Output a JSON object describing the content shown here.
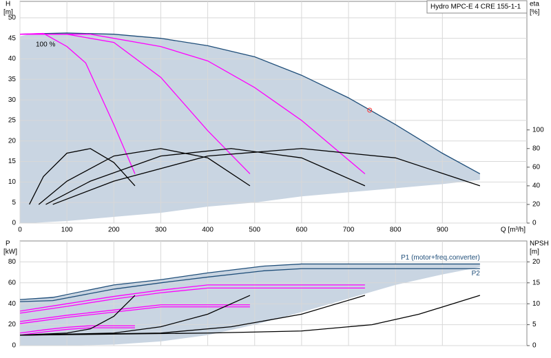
{
  "chart_data": [
    {
      "type": "line",
      "title": "Hydro MPC-E 4 CRE 155-1-1",
      "annotation": "100 %",
      "y_label": "H",
      "y_unit": "[m]",
      "y2_label": "eta",
      "y2_unit": "[%]",
      "x_label": "Q [m³/h]",
      "xlim": [
        0,
        1080
      ],
      "xticks": [
        0,
        100,
        200,
        300,
        400,
        500,
        600,
        700,
        800,
        900
      ],
      "ylim": [
        0,
        54
      ],
      "yticks": [
        0,
        5,
        10,
        15,
        20,
        25,
        30,
        35,
        40,
        45,
        50
      ],
      "y2lim": [
        0,
        238
      ],
      "y2ticks": [
        0,
        20,
        40,
        60,
        80,
        100
      ],
      "grid": true,
      "area": {
        "color": "#c9d5e2",
        "x": [
          0,
          20,
          100,
          200,
          300,
          400,
          500,
          600,
          700,
          800,
          900,
          980
        ],
        "upper": [
          45.5,
          46,
          46.3,
          46,
          45,
          43.2,
          40.5,
          36,
          30.5,
          24,
          17,
          12
        ],
        "lower": [
          0,
          0,
          0.5,
          1.5,
          2.5,
          4,
          5,
          6.5,
          7.5,
          8.5,
          9.5,
          10.5
        ]
      },
      "series": [
        {
          "color": "#1f4e79",
          "x": [
            0,
            100,
            200,
            300,
            400,
            500,
            600,
            700,
            800,
            900,
            980
          ],
          "values": [
            46,
            46.3,
            46,
            45,
            43.2,
            40.5,
            36,
            30.5,
            24,
            17,
            12
          ]
        },
        {
          "color": "#ff00ff",
          "x": [
            0,
            50,
            100,
            140,
            200,
            245
          ],
          "values": [
            46,
            46.2,
            43,
            39,
            24,
            12
          ]
        },
        {
          "color": "#ff00ff",
          "x": [
            0,
            100,
            200,
            300,
            400,
            490
          ],
          "values": [
            46,
            46,
            44,
            35.5,
            22.5,
            12
          ]
        },
        {
          "color": "#ff00ff",
          "x": [
            0,
            150,
            300,
            400,
            500,
            600,
            735
          ],
          "values": [
            46,
            46,
            43,
            39.5,
            33,
            25,
            12
          ]
        },
        {
          "color": "#000000",
          "axis": "y2",
          "x": [
            20,
            50,
            100,
            150,
            200,
            245
          ],
          "values": [
            20,
            50,
            75,
            80,
            65,
            40
          ]
        },
        {
          "color": "#000000",
          "axis": "y2",
          "x": [
            40,
            100,
            200,
            300,
            400,
            490
          ],
          "values": [
            20,
            45,
            72,
            80,
            70,
            40
          ]
        },
        {
          "color": "#000000",
          "axis": "y2",
          "x": [
            55,
            150,
            300,
            450,
            600,
            735
          ],
          "values": [
            20,
            45,
            72,
            80,
            70,
            40
          ]
        },
        {
          "color": "#000000",
          "axis": "y2",
          "x": [
            70,
            200,
            400,
            600,
            800,
            980
          ],
          "values": [
            20,
            45,
            72,
            80,
            70,
            40
          ]
        }
      ],
      "marker": {
        "color": "#ff3030",
        "x": 745,
        "value": 27.5
      }
    },
    {
      "type": "line",
      "y_label": "P",
      "y_unit": "[kW]",
      "y2_label": "NPSH",
      "y2_unit": "[m]",
      "xlim": [
        0,
        1080
      ],
      "ylim": [
        0,
        100
      ],
      "yticks": [
        0,
        20,
        40,
        60,
        80
      ],
      "y2lim": [
        0,
        25
      ],
      "y2ticks": [
        0,
        5,
        10,
        15,
        20
      ],
      "grid": true,
      "area": {
        "color": "#c9d5e2",
        "x": [
          0,
          100,
          200,
          300,
          400,
          500,
          600,
          700,
          800,
          900,
          980
        ],
        "upper": [
          44,
          48,
          58,
          63,
          69.5,
          75,
          78,
          78,
          78,
          78,
          78
        ],
        "lower": [
          0,
          0,
          1,
          4,
          10,
          20,
          32,
          45,
          58,
          68,
          75
        ]
      },
      "series": [
        {
          "name": "P1 (motor+freq.converter)",
          "color": "#1f4e79",
          "x": [
            0,
            70,
            200,
            300,
            400,
            520,
            600,
            980
          ],
          "values": [
            44,
            46,
            58,
            63,
            69.5,
            76,
            78,
            78
          ]
        },
        {
          "name": "P2",
          "color": "#1f4e79",
          "x": [
            0,
            70,
            200,
            300,
            400,
            520,
            600,
            980
          ],
          "values": [
            42,
            43,
            54,
            60,
            65.5,
            71.5,
            73.5,
            73.5
          ]
        },
        {
          "color": "#ff00ff",
          "x": [
            0,
            100,
            200,
            300,
            400,
            735
          ],
          "values": [
            33,
            40,
            47,
            53,
            58,
            58
          ]
        },
        {
          "color": "#ff00ff",
          "x": [
            0,
            100,
            200,
            300,
            400,
            735
          ],
          "values": [
            31,
            37.5,
            44.5,
            50.5,
            55,
            55
          ]
        },
        {
          "color": "#ff00ff",
          "x": [
            0,
            100,
            200,
            300,
            490
          ],
          "values": [
            23,
            29,
            34,
            39,
            39
          ]
        },
        {
          "color": "#ff00ff",
          "x": [
            0,
            100,
            200,
            300,
            490
          ],
          "values": [
            21,
            27,
            32,
            37,
            37
          ]
        },
        {
          "color": "#ff00ff",
          "x": [
            0,
            50,
            100,
            150,
            245
          ],
          "values": [
            12,
            15,
            17.5,
            19,
            19
          ]
        },
        {
          "color": "#ff00ff",
          "x": [
            0,
            50,
            100,
            150,
            245
          ],
          "values": [
            10,
            13,
            15.5,
            17,
            17
          ]
        },
        {
          "color": "#000000",
          "axis": "y2",
          "x": [
            0,
            100,
            150,
            200,
            245
          ],
          "values": [
            2.5,
            3,
            4,
            7,
            12
          ]
        },
        {
          "color": "#000000",
          "axis": "y2",
          "x": [
            0,
            200,
            300,
            400,
            490
          ],
          "values": [
            2.5,
            3,
            4.5,
            7.5,
            12
          ]
        },
        {
          "color": "#000000",
          "axis": "y2",
          "x": [
            0,
            300,
            450,
            600,
            735
          ],
          "values": [
            2.5,
            3,
            4.5,
            7.5,
            12
          ]
        },
        {
          "color": "#000000",
          "axis": "y2",
          "x": [
            0,
            400,
            600,
            750,
            850,
            980
          ],
          "values": [
            2.5,
            3,
            3.5,
            5,
            7.5,
            12
          ]
        }
      ]
    }
  ]
}
